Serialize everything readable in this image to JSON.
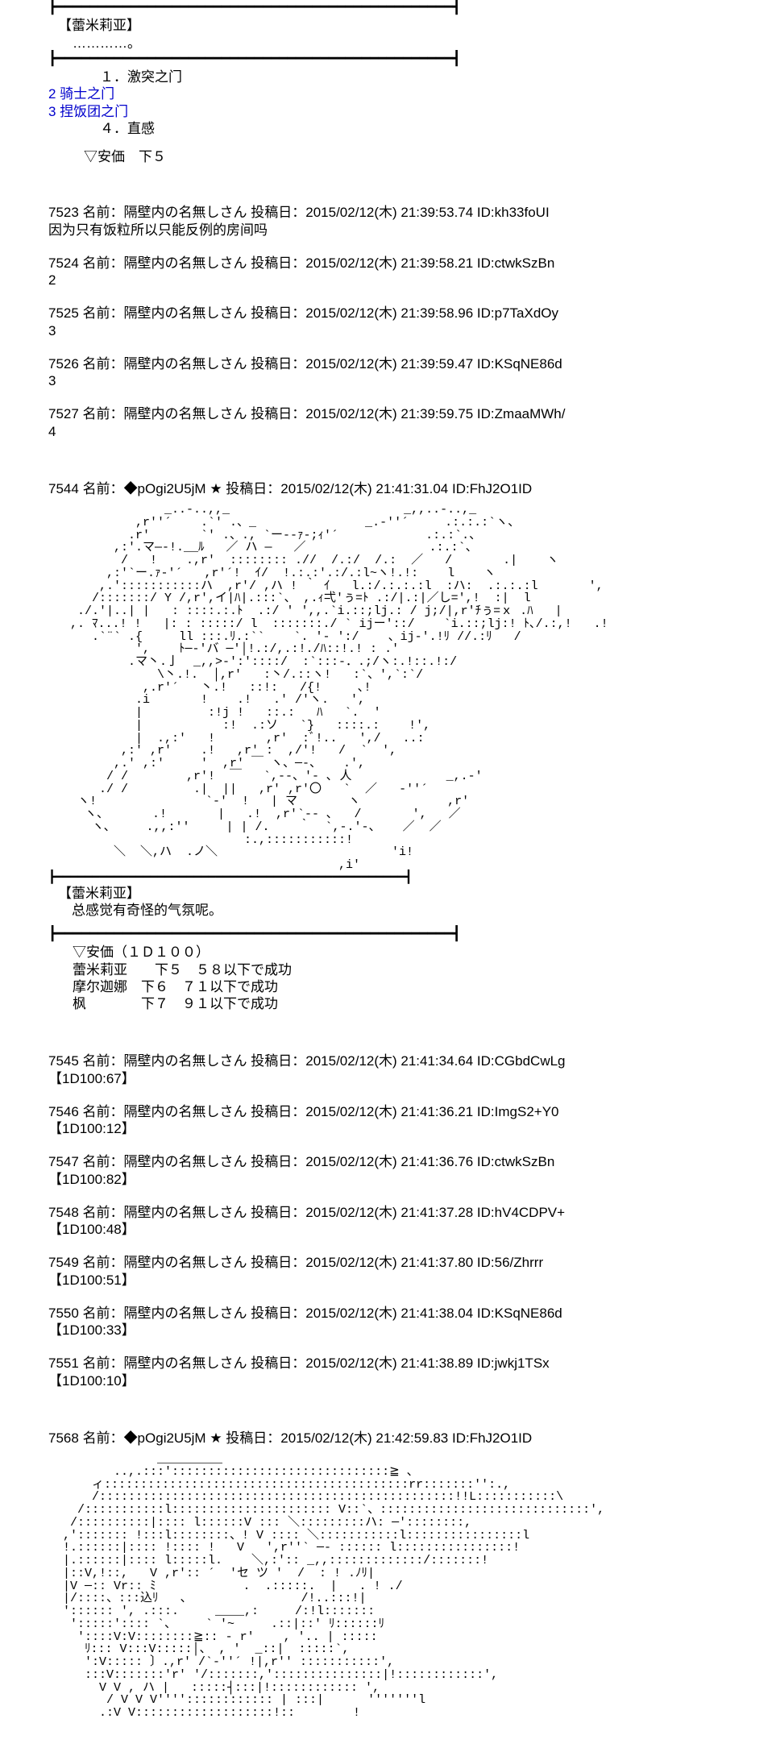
{
  "block1": {
    "rule_top": "┣━━━━━━━━━━━━━━━━━━━━━━━━━━━━━━━━━━━━━━━━━━━━━━━━┫",
    "speaker": "【蕾米莉亚】",
    "dots": "…………。",
    "rule_mid": "┣━━━━━━━━━━━━━━━━━━━━━━━━━━━━━━━━━━━━━━━━━━━━━━━━┫",
    "opt1_indent": "　　１．激突之门",
    "opt2": "2 骑士之门",
    "opt3": "3 捏饭团之门",
    "opt4_indent": "　　４．直感",
    "anka": "▽安価　下５"
  },
  "posts1": [
    {
      "no": "7523",
      "name": "隔壁内の名無しさん",
      "date": "2015/02/12(木) 21:39:53.74",
      "pid": "kh33foUI",
      "body": "因为只有饭粒所以只能反例的房间吗"
    },
    {
      "no": "7524",
      "name": "隔壁内の名無しさん",
      "date": "2015/02/12(木) 21:39:58.21",
      "pid": "ctwkSzBn",
      "body": "2"
    },
    {
      "no": "7525",
      "name": "隔壁内の名無しさん",
      "date": "2015/02/12(木) 21:39:58.96",
      "pid": "p7TaXdOy",
      "body": "3"
    },
    {
      "no": "7526",
      "name": "隔壁内の名無しさん",
      "date": "2015/02/12(木) 21:39:59.47",
      "pid": "KSqNE86d",
      "body": "3"
    },
    {
      "no": "7527",
      "name": "隔壁内の名無しさん",
      "date": "2015/02/12(木) 21:39:59.75",
      "pid": "ZmaaMWh/",
      "body": "4"
    }
  ],
  "gm1": {
    "no": "7544",
    "name": "◆pOgi2U5jM ★",
    "date": "2015/02/12(木) 21:41:31.04",
    "pid": "FhJ2O1ID",
    "aa": "                _..-..,,_                        _,,..-..,_\n            ,r''´    .`' .、_               _.-''´     .:.:.:`ヽ、\n           .r'       `' .、., `ー--ｧ-;ｨ'´            .:.:`.、\n         ,:'.マ―‐!.__ﾙ   ／ ハ ―   ／                 .:.:`、\n          /   !    .,r'  :::::::: .//  /.:/  /.:  ／   /       .|    ヽ\n        ,:'`ー.ｧ‐'´   ,r'´!  ｲ/  !.:.:′.:/.:l~ヽ!.!:    l    ヽ\n       ,.':::::::::::ハ  ,r'/ ,ハ ! ｀ ｲ   l.:/.:.:.:l  :ハ:  .:.:.:l       ',\n      /:::::::/ Y /,r',イ|ﾊ|.:::`、 ,.ｨ弌'ぅ=ﾄ .:/|.:|／し=',!  :|  l\n    ./.'|..| |   : ::::.:.ﾄ  .:/ ' ',,.`i.::;lj.: / j;/|,r'ﾁぅ=ｘ .ﾊ   |\n   ,. ﾏ...! !   |: : :::::/ l  :::::::./ ` ijー'::/    `i.::;lj:! ﾄ､/.:,!   .!\n      .`¨` .{     ll :::.ﾘ.:``    `. ′- ':/    、ij‐'.!ﾘ //.:ﾘ   /\n            ',    ﾄ─‐'バ ─'│!.:/,.:!./ﾊ::!.! : .'\n           .マ丶.亅  _,,>‐':'::::/  :`:::-．.;/ヽ:.!::.!:/\n               \\丶.!.  │,r'   :丶/.::ヽ!   :`、',`:`/\n             ,.r'´   丶.!   ::!:   /{!     ､!\n            .i       !    .!   .′ /'ヽ.   ',\n            |         :!j !   ::.:   ﾊ   `.  ′\n            |           :!  .:ソ   `}   ::::.:    !',\n            |  .,:'   !       ,r'  :ﾞ!..   ',/   ..:\n          ,:' ,r'    .!   ,r' :  ,/′!   /  `  ',\n         ,.' ,:'     '  ,r' ￣ ヽ、─-、   .',\n        / /        ,r'!  ￣   `,--、'- ､ 人             _,.‐'\n       ./ /         .|  ||   ,r' ,r'〇   `  ／   ‐''´\n    ヽ!               `‐'  !   | マ       ヽ            ,r'\n     ヽ、      .!       |   .!  ,r'`‐- ､   /       ',   ／\n      ヽ､     .,,:'′     | | /.    ｀  `,-.'-、   ／  ／\n                           :.,:::::::::::!\n         ＼  ＼,ハ  .ノ＼                        'i!\n                                        ,i'\n┣━━━━━━━━━━━━━━━━━━━━━━━━━━━━━━━━━━━━━━━━━━━━━━━━┫",
    "speaker": "【蕾米莉亚】",
    "line": "　总感觉有奇怪的气氛呢。",
    "rule_bot": "┣━━━━━━━━━━━━━━━━━━━━━━━━━━━━━━━━━━━━━━━━━━━━━━━━┫",
    "dice_title": "▽安価（１Ｄ１００）",
    "dice1": "蕾米莉亚　　下５　５８以下で成功",
    "dice2": "摩尔迦娜　下６　７１以下で成功",
    "dice3": "枫　　　　下７　９１以下で成功"
  },
  "posts2": [
    {
      "no": "7545",
      "name": "隔壁内の名無しさん",
      "date": "2015/02/12(木) 21:41:34.64",
      "pid": "CGbdCwLg",
      "body": "【1D100:67】"
    },
    {
      "no": "7546",
      "name": "隔壁内の名無しさん",
      "date": "2015/02/12(木) 21:41:36.21",
      "pid": "ImgS2+Y0",
      "body": "【1D100:12】"
    },
    {
      "no": "7547",
      "name": "隔壁内の名無しさん",
      "date": "2015/02/12(木) 21:41:36.76",
      "pid": "ctwkSzBn",
      "body": "【1D100:82】"
    },
    {
      "no": "7548",
      "name": "隔壁内の名無しさん",
      "date": "2015/02/12(木) 21:41:37.28",
      "pid": "hV4CDPV+",
      "body": "【1D100:48】"
    },
    {
      "no": "7549",
      "name": "隔壁内の名無しさん",
      "date": "2015/02/12(木) 21:41:37.80",
      "pid": "56/Zhrrr",
      "body": "【1D100:51】"
    },
    {
      "no": "7550",
      "name": "隔壁内の名無しさん",
      "date": "2015/02/12(木) 21:41:38.04",
      "pid": "KSqNE86d",
      "body": "【1D100:33】"
    },
    {
      "no": "7551",
      "name": "隔壁内の名無しさん",
      "date": "2015/02/12(木) 21:41:38.89",
      "pid": "jwkj1TSx",
      "body": "【1D100:10】"
    }
  ],
  "gm2": {
    "no": "7568",
    "name": "◆pOgi2U5jM ★",
    "date": "2015/02/12(木) 21:42:59.83",
    "pid": "FhJ2O1ID",
    "aa": "               _________\n         ..,.:::'::::::::::::::::::::::::::::::≧ 、\n      ィ::::::::::::::::::::::::::::::::::::::::::rr:::::::'':.,\n      /:::::::::::::::::::::::::::::::::::::::::::::::::!!L:::::::::::\\\n    /:::::::::::l:::::::::::::::::::::: V::`、:::::::::::::::::::::::::::::',\n   /::::::::::|:::: l::::::V ::: ＼:::::::::ハ: ─'::::::::,\n  ,'::::::: !:::l::::::::、! V :::: ＼:::::::::::l::::::::::::::::l\n  !.::::::|:::: !:::: !   V   ',r''` ─- :::::: l::::::::::::::::!\n  |.::::::|:::: l:::::l.    ＼,:':: _,,:::::::::::::/:::::::!\n  |::V,!::,   V ,r':: ´  'セ ツ '  /  : ! .ﾉﾘ|\n  |V ─:: Vr:: ﾐ            .  .:::::.  |   . ! ./\n  |/::::、:::込ﾘ   、               /!..:::!|\n  ':::::: ', .:::.     ____,:     /:!l:::::::\n   ':::::':::: `、    ` '~     .::|::' ﾘ::::::ﾘ\n    '::::V:V::::::::≧:: - r'    , '.. | :::::\n     ﾘ::: V:::V:::::│、 , '  _::|  :::::`,\n     ':V::::: 〕.,r' /`‐''´ !|,r'' :::::::::::',\n     :::V:::::::'r' '/:::::::,':::::::::::::::|!::::::::::::',\n       V V , ハ |   :::::┤:::|!:::::::::::: ',\n        / V V V'''':::::::::::: | :::|      '''''''l\n       .:V V:::::::::::::::::::!::        !"
  },
  "labels": {
    "name_prefix": "名前：",
    "date_prefix": "投稿日：",
    "id_prefix": "ID:"
  }
}
